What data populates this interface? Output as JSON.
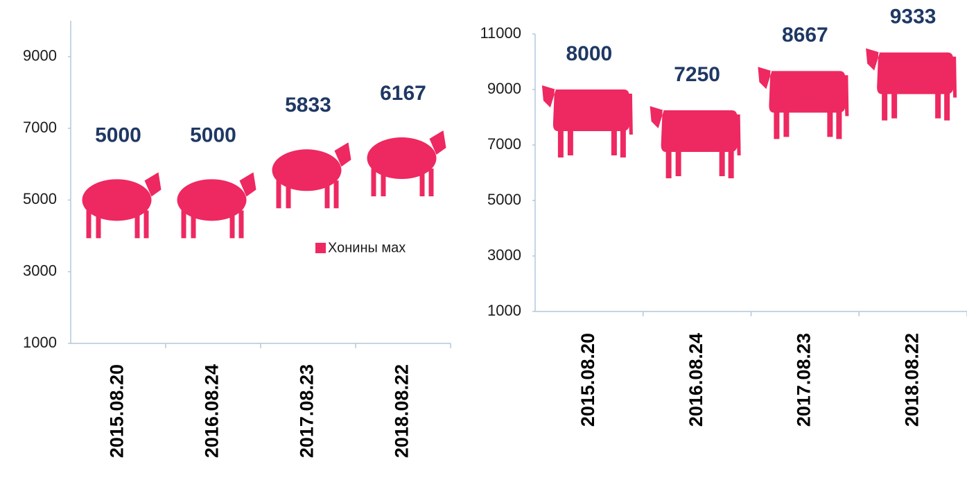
{
  "chart_data": [
    {
      "type": "pictograph",
      "icon": "sheep",
      "categories": [
        "2015.08.20",
        "2016.08.24",
        "2017.08.23",
        "2018.08.22"
      ],
      "series": [
        {
          "name": "Хонины мах",
          "color": "#ee2860",
          "values": [
            5000,
            5000,
            5833,
            6167
          ]
        }
      ],
      "ylim": [
        1000,
        10000
      ],
      "yticks": [
        1000,
        3000,
        5000,
        7000,
        9000
      ],
      "legend": "right"
    },
    {
      "type": "pictograph",
      "icon": "cow",
      "categories": [
        "2015.08.20",
        "2016.08.24",
        "2017.08.23",
        "2018.08.22"
      ],
      "color": "#ee2860",
      "values": [
        8000,
        7250,
        8667,
        9333
      ],
      "ylim": [
        1000,
        11000
      ],
      "yticks": [
        1000,
        3000,
        5000,
        7000,
        9000,
        11000
      ]
    }
  ]
}
